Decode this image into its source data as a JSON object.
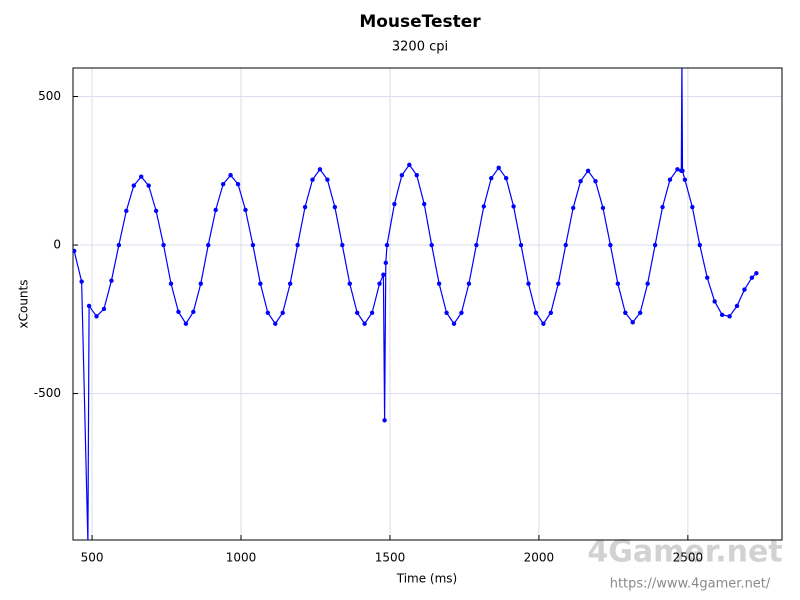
{
  "chart_data": {
    "type": "line",
    "title": "MouseTester",
    "subtitle": "3200 cpi",
    "xlabel": "Time (ms)",
    "ylabel": "xCounts",
    "watermark": "4Gamer.net",
    "watermark_url": "https://www.4gamer.net/",
    "xlim": [
      436,
      2816
    ],
    "ylim": [
      -993,
      596
    ],
    "xticks": [
      500,
      1000,
      1500,
      2000,
      2500
    ],
    "yticks": [
      -500,
      0,
      500
    ],
    "grid": true,
    "series": [
      {
        "name": "xCounts",
        "color": "#0000ff",
        "x": [
          440,
          465,
          486,
          490,
          515,
          540,
          565,
          590,
          615,
          640,
          665,
          690,
          715,
          740,
          765,
          790,
          815,
          840,
          865,
          890,
          915,
          940,
          965,
          990,
          1015,
          1040,
          1065,
          1090,
          1115,
          1140,
          1165,
          1190,
          1215,
          1240,
          1265,
          1290,
          1315,
          1340,
          1365,
          1390,
          1415,
          1440,
          1465,
          1478,
          1482,
          1486,
          1490,
          1515,
          1540,
          1565,
          1590,
          1615,
          1640,
          1665,
          1690,
          1715,
          1740,
          1765,
          1790,
          1815,
          1840,
          1865,
          1890,
          1915,
          1940,
          1965,
          1990,
          2015,
          2040,
          2065,
          2090,
          2115,
          2140,
          2165,
          2190,
          2215,
          2240,
          2265,
          2290,
          2315,
          2340,
          2365,
          2390,
          2415,
          2440,
          2465,
          2478,
          2480,
          2482,
          2490,
          2515,
          2540,
          2565,
          2590,
          2615,
          2640,
          2665,
          2690,
          2715,
          2730
        ],
        "values": [
          -20,
          -123,
          -1000,
          -205,
          -240,
          -215,
          -120,
          0,
          115,
          200,
          230,
          200,
          115,
          0,
          -130,
          -225,
          -265,
          -225,
          -130,
          0,
          118,
          205,
          235,
          205,
          118,
          0,
          -130,
          -228,
          -265,
          -228,
          -130,
          0,
          128,
          220,
          255,
          220,
          128,
          0,
          -130,
          -228,
          -265,
          -228,
          -130,
          -100,
          -590,
          -60,
          0,
          138,
          235,
          270,
          235,
          138,
          0,
          -130,
          -228,
          -265,
          -228,
          -130,
          0,
          130,
          225,
          260,
          225,
          130,
          0,
          -130,
          -228,
          -265,
          -228,
          -130,
          0,
          125,
          215,
          250,
          215,
          125,
          0,
          -130,
          -228,
          -260,
          -228,
          -130,
          0,
          128,
          220,
          255,
          250,
          620,
          250,
          220,
          128,
          0,
          -110,
          -190,
          -235,
          -240,
          -205,
          -150,
          -110,
          -95
        ]
      }
    ]
  }
}
